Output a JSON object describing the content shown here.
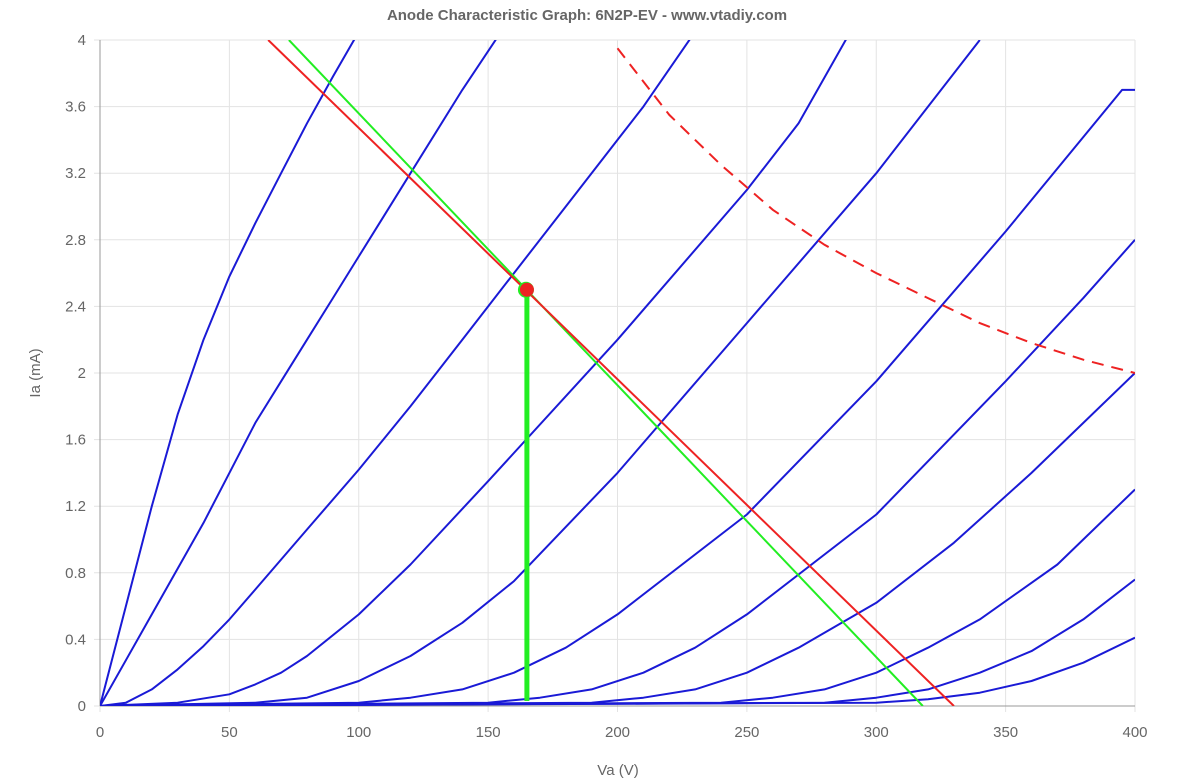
{
  "chart_data": {
    "type": "line",
    "title": "Anode Characteristic Graph: 6N2P-EV - www.vtadiy.com",
    "xlabel": "Va (V)",
    "ylabel": "Ia (mA)",
    "xlim": [
      0,
      400
    ],
    "ylim": [
      0,
      4
    ],
    "x_ticks": [
      "0",
      "50",
      "100",
      "150",
      "200",
      "250",
      "300",
      "350",
      "400"
    ],
    "y_ticks": [
      "0",
      "0.4",
      "0.8",
      "1.2",
      "1.6",
      "2",
      "2.4",
      "2.8",
      "3.2",
      "3.6",
      "4"
    ],
    "grid": true,
    "colors": {
      "curves": "#1a1ad6",
      "load_line": "#ee2222",
      "ac_load_line": "#22ee22",
      "max_dissipation": "#ee2222",
      "grid": "#e3e3e3",
      "axis": "#999999"
    },
    "series": [
      {
        "values": [
          [
            0,
            0
          ],
          [
            10,
            0.6
          ],
          [
            20,
            1.2
          ],
          [
            30,
            1.75
          ],
          [
            40,
            2.2
          ],
          [
            50,
            2.58
          ],
          [
            60,
            2.9
          ],
          [
            70,
            3.2
          ],
          [
            80,
            3.5
          ],
          [
            90,
            3.78
          ],
          [
            100,
            4.05
          ]
        ]
      },
      {
        "values": [
          [
            0,
            0
          ],
          [
            20,
            0.55
          ],
          [
            40,
            1.1
          ],
          [
            50,
            1.4
          ],
          [
            60,
            1.7
          ],
          [
            70,
            1.95
          ],
          [
            80,
            2.2
          ],
          [
            90,
            2.45
          ],
          [
            100,
            2.7
          ],
          [
            120,
            3.2
          ],
          [
            140,
            3.7
          ],
          [
            155,
            4.05
          ]
        ]
      },
      {
        "values": [
          [
            0,
            0
          ],
          [
            10,
            0.02
          ],
          [
            20,
            0.1
          ],
          [
            30,
            0.22
          ],
          [
            40,
            0.36
          ],
          [
            50,
            0.52
          ],
          [
            60,
            0.7
          ],
          [
            80,
            1.06
          ],
          [
            100,
            1.42
          ],
          [
            120,
            1.8
          ],
          [
            140,
            2.2
          ],
          [
            160,
            2.6
          ],
          [
            180,
            3.0
          ],
          [
            200,
            3.4
          ],
          [
            210,
            3.6
          ],
          [
            230,
            4.05
          ]
        ]
      },
      {
        "values": [
          [
            0,
            0
          ],
          [
            30,
            0.02
          ],
          [
            50,
            0.07
          ],
          [
            60,
            0.13
          ],
          [
            70,
            0.2
          ],
          [
            80,
            0.3
          ],
          [
            100,
            0.55
          ],
          [
            120,
            0.85
          ],
          [
            150,
            1.35
          ],
          [
            200,
            2.2
          ],
          [
            250,
            3.1
          ],
          [
            270,
            3.5
          ],
          [
            290,
            4.05
          ]
        ]
      },
      {
        "values": [
          [
            0,
            0
          ],
          [
            60,
            0.02
          ],
          [
            80,
            0.05
          ],
          [
            100,
            0.15
          ],
          [
            120,
            0.3
          ],
          [
            140,
            0.5
          ],
          [
            160,
            0.75
          ],
          [
            200,
            1.4
          ],
          [
            250,
            2.3
          ],
          [
            300,
            3.2
          ],
          [
            340,
            4.0
          ]
        ]
      },
      {
        "values": [
          [
            0,
            0
          ],
          [
            100,
            0.02
          ],
          [
            120,
            0.05
          ],
          [
            140,
            0.1
          ],
          [
            160,
            0.2
          ],
          [
            180,
            0.35
          ],
          [
            200,
            0.55
          ],
          [
            250,
            1.15
          ],
          [
            300,
            1.95
          ],
          [
            350,
            2.85
          ],
          [
            395,
            3.7
          ],
          [
            400,
            3.7
          ]
        ]
      },
      {
        "values": [
          [
            0,
            0
          ],
          [
            150,
            0.02
          ],
          [
            170,
            0.05
          ],
          [
            190,
            0.1
          ],
          [
            210,
            0.2
          ],
          [
            230,
            0.35
          ],
          [
            250,
            0.55
          ],
          [
            300,
            1.15
          ],
          [
            350,
            1.95
          ],
          [
            380,
            2.45
          ],
          [
            400,
            2.8
          ]
        ]
      },
      {
        "values": [
          [
            0,
            0
          ],
          [
            190,
            0.02
          ],
          [
            210,
            0.05
          ],
          [
            230,
            0.1
          ],
          [
            250,
            0.2
          ],
          [
            270,
            0.35
          ],
          [
            300,
            0.62
          ],
          [
            330,
            0.98
          ],
          [
            360,
            1.4
          ],
          [
            400,
            2.0
          ]
        ]
      },
      {
        "values": [
          [
            0,
            0
          ],
          [
            240,
            0.02
          ],
          [
            260,
            0.05
          ],
          [
            280,
            0.1
          ],
          [
            300,
            0.2
          ],
          [
            320,
            0.35
          ],
          [
            340,
            0.52
          ],
          [
            370,
            0.85
          ],
          [
            400,
            1.3
          ]
        ]
      },
      {
        "values": [
          [
            0,
            0
          ],
          [
            280,
            0.02
          ],
          [
            300,
            0.05
          ],
          [
            320,
            0.1
          ],
          [
            340,
            0.2
          ],
          [
            360,
            0.33
          ],
          [
            380,
            0.52
          ],
          [
            400,
            0.76
          ]
        ]
      },
      {
        "values": [
          [
            0,
            0
          ],
          [
            300,
            0.02
          ],
          [
            320,
            0.04
          ],
          [
            340,
            0.08
          ],
          [
            360,
            0.15
          ],
          [
            380,
            0.26
          ],
          [
            400,
            0.41
          ]
        ]
      }
    ],
    "load_line": [
      [
        65,
        4.0
      ],
      [
        330,
        0
      ]
    ],
    "ac_load_line": [
      [
        73,
        4.0
      ],
      [
        318,
        0
      ]
    ],
    "bias_line": [
      [
        165,
        0.03
      ],
      [
        165,
        2.5
      ]
    ],
    "operating_point": [
      165,
      2.5
    ],
    "max_dissipation": [
      [
        200,
        3.95
      ],
      [
        220,
        3.55
      ],
      [
        240,
        3.25
      ],
      [
        260,
        2.98
      ],
      [
        280,
        2.77
      ],
      [
        300,
        2.6
      ],
      [
        320,
        2.45
      ],
      [
        340,
        2.3
      ],
      [
        360,
        2.18
      ],
      [
        380,
        2.08
      ],
      [
        400,
        2.0
      ]
    ]
  }
}
